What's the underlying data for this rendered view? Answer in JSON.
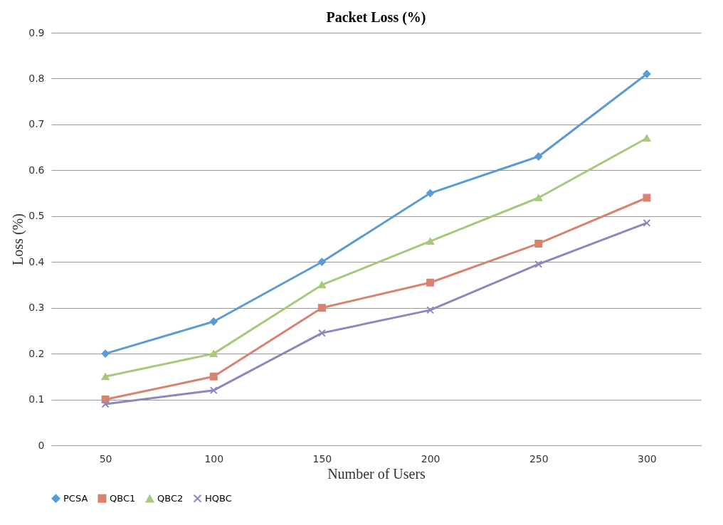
{
  "chart_data": {
    "type": "line",
    "title": "Packet Loss (%)",
    "xlabel": "Number of Users",
    "ylabel": "Loss (%)",
    "categories": [
      "50",
      "100",
      "150",
      "200",
      "250",
      "300"
    ],
    "series": [
      {
        "name": "PCSA",
        "color": "#5b9bd5",
        "marker": "diamond",
        "values": [
          0.2,
          0.27,
          0.4,
          0.55,
          0.63,
          0.81
        ]
      },
      {
        "name": "QBC1",
        "color": "#d9826e",
        "marker": "square",
        "values": [
          0.1,
          0.15,
          0.3,
          0.355,
          0.44,
          0.54
        ]
      },
      {
        "name": "QBC2",
        "color": "#a6c97a",
        "marker": "triangle",
        "values": [
          0.15,
          0.2,
          0.35,
          0.445,
          0.54,
          0.67
        ]
      },
      {
        "name": "HQBC",
        "color": "#8d86bf",
        "marker": "cross",
        "values": [
          0.09,
          0.12,
          0.245,
          0.295,
          0.395,
          0.485
        ]
      }
    ],
    "ylim": [
      0,
      0.9
    ],
    "yticks": [
      0,
      0.1,
      0.2,
      0.3,
      0.4,
      0.5,
      0.6,
      0.7,
      0.8,
      0.9
    ],
    "grid": "y",
    "legend": "bottom",
    "line_style": "solid"
  }
}
